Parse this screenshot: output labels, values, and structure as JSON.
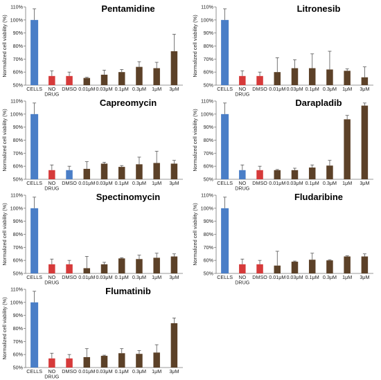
{
  "chart_data": [
    {
      "type": "bar",
      "title": "Pentamidine",
      "ylabel": "Normalized cell viability (%)",
      "ylim": [
        50,
        110
      ],
      "yticks": [
        "50%",
        "60%",
        "70%",
        "80%",
        "90%",
        "100%",
        "110%"
      ],
      "categories": [
        "CELLS",
        "NO DRUG",
        "DMSO",
        "0.01μM",
        "0.03μM",
        "0.1μM",
        "0.3μM",
        "1μM",
        "3μM"
      ],
      "values": [
        100,
        57,
        57,
        55.5,
        58,
        60,
        64,
        63,
        76
      ],
      "errors": [
        8.5,
        4,
        3,
        0.5,
        3.5,
        2,
        4,
        4.5,
        13
      ],
      "colors": [
        "#4a7ec7",
        "#d63a3a",
        "#d63a3a",
        "#5c4128",
        "#5c4128",
        "#5c4128",
        "#5c4128",
        "#5c4128",
        "#5c4128"
      ]
    },
    {
      "type": "bar",
      "title": "Litronesib",
      "ylabel": "Normalized cell viability (%)",
      "ylim": [
        50,
        110
      ],
      "yticks": [
        "50%",
        "60%",
        "70%",
        "80%",
        "90%",
        "100%",
        "110%"
      ],
      "categories": [
        "CELLS",
        "NO DRUG",
        "DMSO",
        "0.01μM",
        "0.03μM",
        "0.1μM",
        "0.3μM",
        "1μM",
        "3μM"
      ],
      "values": [
        100,
        57,
        57,
        60,
        63,
        63,
        62,
        61,
        56
      ],
      "errors": [
        8.5,
        4,
        3,
        11,
        6.5,
        11,
        14,
        1.5,
        8
      ],
      "colors": [
        "#4a7ec7",
        "#d63a3a",
        "#d63a3a",
        "#5c4128",
        "#5c4128",
        "#5c4128",
        "#5c4128",
        "#5c4128",
        "#5c4128"
      ]
    },
    {
      "type": "bar",
      "title": "Capreomycin",
      "ylabel": "Normalized cell viability (%)",
      "ylim": [
        50,
        110
      ],
      "yticks": [
        "50%",
        "60%",
        "70%",
        "80%",
        "90%",
        "100%",
        "110%"
      ],
      "categories": [
        "CELLS",
        "NO DRUG",
        "DMSO",
        "0.01μM",
        "0.03μM",
        "0.1μM",
        "0.3μM",
        "1μM",
        "3μM"
      ],
      "values": [
        100,
        57,
        57,
        58,
        62,
        59.5,
        61.5,
        62.5,
        62
      ],
      "errors": [
        8.5,
        4,
        3,
        5.5,
        1,
        1,
        5.5,
        9,
        2.5
      ],
      "colors": [
        "#4a7ec7",
        "#d63a3a",
        "#4a7ec7",
        "#5c4128",
        "#5c4128",
        "#5c4128",
        "#5c4128",
        "#5c4128",
        "#5c4128"
      ]
    },
    {
      "type": "bar",
      "title": "Darapladib",
      "ylabel": "Normalized cell viability (%)",
      "ylim": [
        50,
        110
      ],
      "yticks": [
        "50%",
        "60%",
        "70%",
        "80%",
        "90%",
        "100%",
        "110%"
      ],
      "categories": [
        "CELLS",
        "NO DRUG",
        "DMSO",
        "0.01μM",
        "0.03μM",
        "0.1μM",
        "0.3μM",
        "1μM",
        "3μM"
      ],
      "values": [
        100,
        57,
        57,
        57,
        57,
        59,
        60.5,
        96,
        106.5
      ],
      "errors": [
        8.5,
        4,
        3,
        0.5,
        1.5,
        2,
        4,
        3,
        2
      ],
      "colors": [
        "#4a7ec7",
        "#4a7ec7",
        "#d63a3a",
        "#5c4128",
        "#5c4128",
        "#5c4128",
        "#5c4128",
        "#5c4128",
        "#5c4128"
      ]
    },
    {
      "type": "bar",
      "title": "Spectinomycin",
      "ylabel": "Normalized cell viability (%)",
      "ylim": [
        50,
        110
      ],
      "yticks": [
        "50%",
        "60%",
        "70%",
        "80%",
        "90%",
        "100%",
        "110%"
      ],
      "categories": [
        "CELLS",
        "NO DRUG",
        "DMSO",
        "0.01μM",
        "0.03μM",
        "0.1μM",
        "0.3μM",
        "1μM",
        "3μM"
      ],
      "values": [
        100,
        57,
        57,
        54,
        57,
        61.5,
        61,
        62,
        63
      ],
      "errors": [
        8.5,
        4,
        3,
        9,
        1.5,
        0.5,
        3,
        3.5,
        2
      ],
      "colors": [
        "#4a7ec7",
        "#d63a3a",
        "#d63a3a",
        "#5c4128",
        "#5c4128",
        "#5c4128",
        "#5c4128",
        "#5c4128",
        "#5c4128"
      ]
    },
    {
      "type": "bar",
      "title": "Fludaribine",
      "ylabel": "Normalized cell viability (%)",
      "ylim": [
        50,
        110
      ],
      "yticks": [
        "50%",
        "60%",
        "70%",
        "80%",
        "90%",
        "100%",
        "110%"
      ],
      "categories": [
        "CELLS",
        "NO DRUG",
        "DMSO",
        "0.01μM",
        "0.03μM",
        "0.1μM",
        "0.3μM",
        "1μM",
        "3μM"
      ],
      "values": [
        100,
        57,
        57,
        56,
        59,
        60.5,
        60,
        63,
        63
      ],
      "errors": [
        8.5,
        4,
        3,
        11,
        0.5,
        5,
        0.5,
        0.5,
        2
      ],
      "colors": [
        "#4a7ec7",
        "#d63a3a",
        "#d63a3a",
        "#5c4128",
        "#5c4128",
        "#5c4128",
        "#5c4128",
        "#5c4128",
        "#5c4128"
      ]
    },
    {
      "type": "bar",
      "title": "Flumatinib",
      "ylabel": "Normalized cell viability (%)",
      "ylim": [
        50,
        110
      ],
      "yticks": [
        "50%",
        "60%",
        "70%",
        "80%",
        "90%",
        "100%",
        "110%"
      ],
      "categories": [
        "CELLS",
        "NO DRUG",
        "DMSO",
        "0.01μM",
        "0.03μM",
        "0.1μM",
        "0.3μM",
        "1μM",
        "3μM"
      ],
      "values": [
        100,
        57,
        57,
        58,
        59,
        61,
        60.5,
        61.5,
        84
      ],
      "errors": [
        8.5,
        4,
        3,
        6.5,
        0.5,
        3.5,
        2.5,
        6,
        4
      ],
      "colors": [
        "#4a7ec7",
        "#d63a3a",
        "#d63a3a",
        "#5c4128",
        "#5c4128",
        "#5c4128",
        "#5c4128",
        "#5c4128",
        "#5c4128"
      ]
    }
  ]
}
